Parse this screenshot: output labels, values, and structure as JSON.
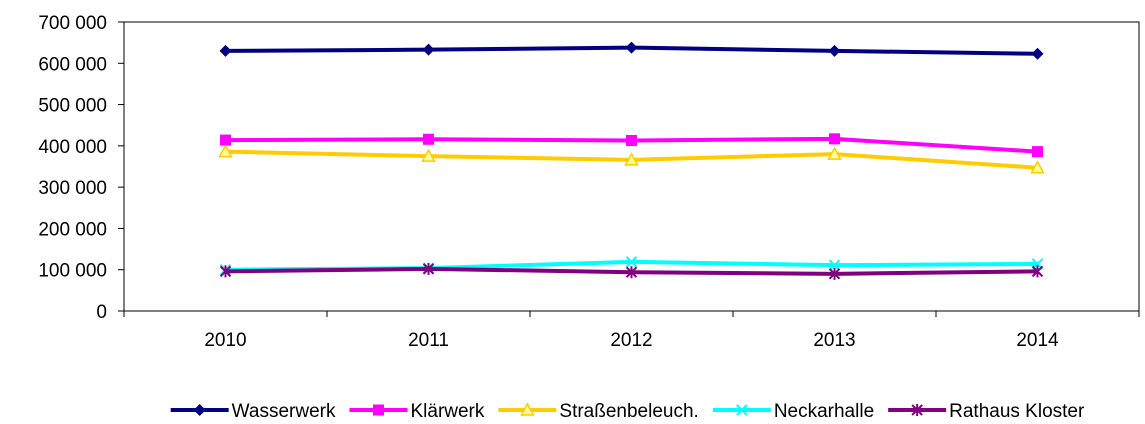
{
  "chart_data": {
    "type": "line",
    "title": "",
    "xlabel": "",
    "ylabel": "",
    "categories": [
      "2010",
      "2011",
      "2012",
      "2013",
      "2014"
    ],
    "ylim": [
      0,
      700000
    ],
    "y_ticks": [
      0,
      100000,
      200000,
      300000,
      400000,
      500000,
      600000,
      700000
    ],
    "y_tick_labels": [
      "0",
      "100 000",
      "200 000",
      "300 000",
      "400 000",
      "500 000",
      "600 000",
      "700 000"
    ],
    "grid": false,
    "legend_position": "bottom",
    "series": [
      {
        "name": "Wasserwerk",
        "color": "#000080",
        "marker": "diamond",
        "values": [
          630000,
          633000,
          638000,
          630000,
          623000
        ]
      },
      {
        "name": "Klärwerk",
        "color": "#ff00ff",
        "marker": "square",
        "values": [
          414000,
          416000,
          413000,
          417000,
          386000
        ]
      },
      {
        "name": "Straßenbeleuch.",
        "color": "#ffcc00",
        "marker": "triangle",
        "values": [
          386000,
          375000,
          366000,
          380000,
          347000
        ]
      },
      {
        "name": "Neckarhalle",
        "color": "#00ffff",
        "marker": "x",
        "values": [
          100000,
          104000,
          119000,
          111000,
          114000
        ]
      },
      {
        "name": "Rathaus Kloster",
        "color": "#800080",
        "marker": "star",
        "values": [
          96000,
          102000,
          94000,
          90000,
          96000
        ]
      }
    ]
  }
}
